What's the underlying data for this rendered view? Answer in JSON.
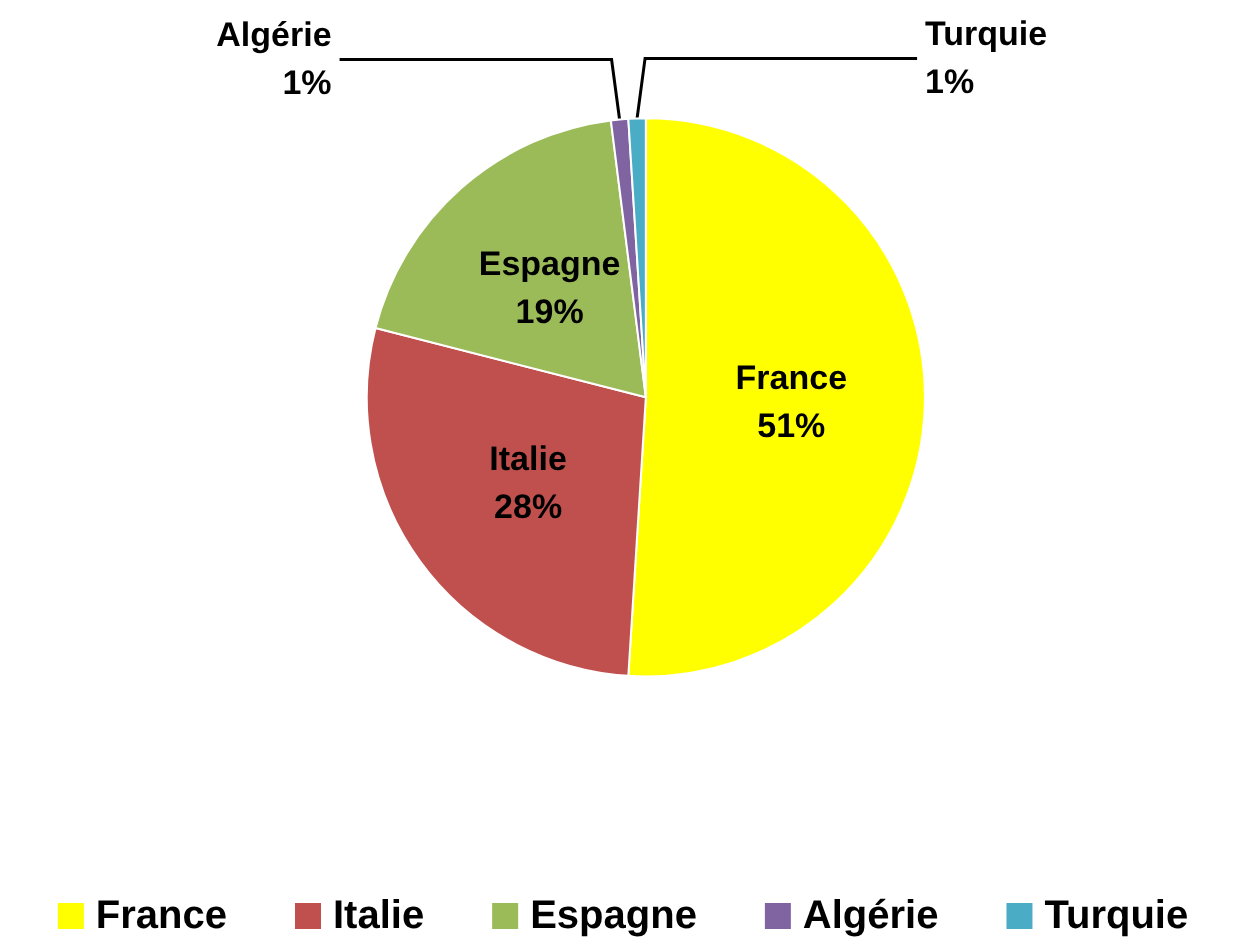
{
  "chart_data": {
    "type": "pie",
    "categories": [
      "France",
      "Italie",
      "Espagne",
      "Algérie",
      "Turquie"
    ],
    "values": [
      51,
      28,
      19,
      1,
      1
    ],
    "colors": [
      "#ffff00",
      "#c0504d",
      "#9bbb59",
      "#8064a2",
      "#4bacc6"
    ],
    "value_labels": [
      "51%",
      "28%",
      "19%",
      "1%",
      "1%"
    ],
    "legend": "bottom"
  }
}
